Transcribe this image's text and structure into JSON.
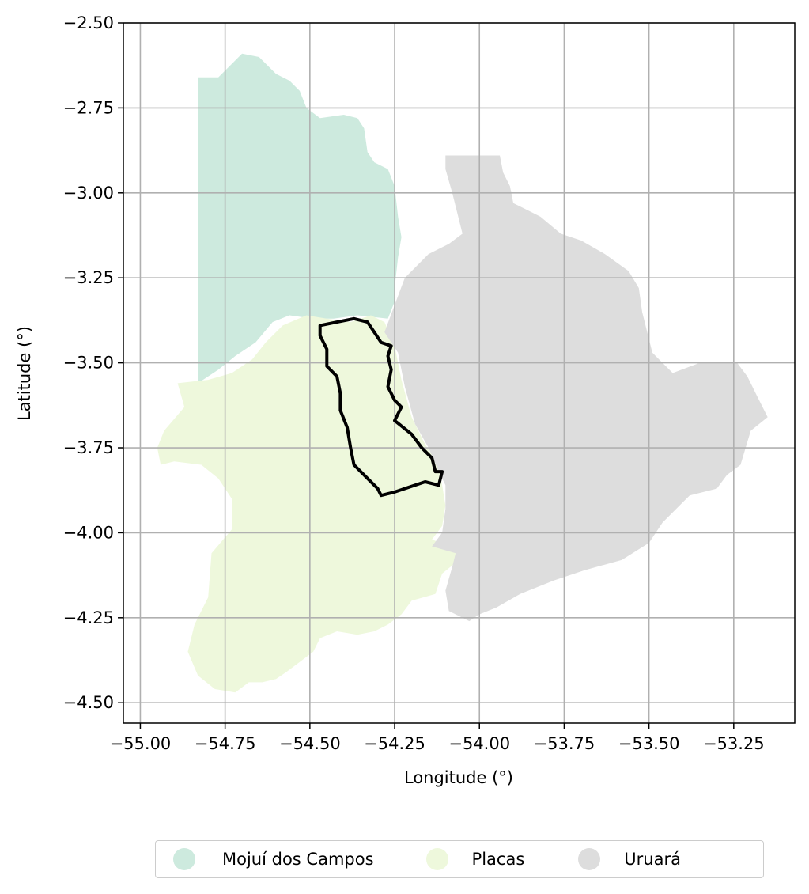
{
  "chart_data": {
    "type": "map",
    "xlabel": "Longitude (°)",
    "ylabel": "Latitude (°)",
    "xlim": [
      -55.05,
      -53.07
    ],
    "ylim": [
      -4.56,
      -2.5
    ],
    "xticks": [
      -55.0,
      -54.75,
      -54.5,
      -54.25,
      -54.0,
      -53.75,
      -53.5,
      -53.25
    ],
    "yticks": [
      -2.5,
      -2.75,
      -3.0,
      -3.25,
      -3.5,
      -3.75,
      -4.0,
      -4.25,
      -4.5
    ],
    "xtick_labels": [
      "−55.00",
      "−54.75",
      "−54.50",
      "−54.25",
      "−54.00",
      "−53.75",
      "−53.50",
      "−53.25"
    ],
    "ytick_labels": [
      "−2.50",
      "−2.75",
      "−3.00",
      "−3.25",
      "−3.50",
      "−3.75",
      "−4.00",
      "−4.25",
      "−4.50"
    ],
    "grid": true,
    "legend_position": "bottom-center",
    "regions": [
      {
        "name": "Mojuí dos Campos",
        "color": "#cdeade",
        "polygon": [
          [
            -54.83,
            -2.66
          ],
          [
            -54.77,
            -2.66
          ],
          [
            -54.7,
            -2.59
          ],
          [
            -54.65,
            -2.6
          ],
          [
            -54.6,
            -2.65
          ],
          [
            -54.56,
            -2.67
          ],
          [
            -54.53,
            -2.7
          ],
          [
            -54.51,
            -2.75
          ],
          [
            -54.47,
            -2.78
          ],
          [
            -54.4,
            -2.77
          ],
          [
            -54.36,
            -2.78
          ],
          [
            -54.34,
            -2.81
          ],
          [
            -54.33,
            -2.88
          ],
          [
            -54.31,
            -2.91
          ],
          [
            -54.27,
            -2.93
          ],
          [
            -54.25,
            -2.98
          ],
          [
            -54.24,
            -3.07
          ],
          [
            -54.23,
            -3.13
          ],
          [
            -54.24,
            -3.19
          ],
          [
            -54.25,
            -3.28
          ],
          [
            -54.25,
            -3.32
          ],
          [
            -54.27,
            -3.37
          ],
          [
            -54.36,
            -3.36
          ],
          [
            -54.43,
            -3.37
          ],
          [
            -54.49,
            -3.37
          ],
          [
            -54.56,
            -3.36
          ],
          [
            -54.61,
            -3.38
          ],
          [
            -54.66,
            -3.44
          ],
          [
            -54.72,
            -3.48
          ],
          [
            -54.77,
            -3.52
          ],
          [
            -54.83,
            -3.56
          ]
        ]
      },
      {
        "name": "Placas",
        "color": "#eef8dc",
        "polygon": [
          [
            -54.51,
            -3.36
          ],
          [
            -54.45,
            -3.37
          ],
          [
            -54.38,
            -3.38
          ],
          [
            -54.32,
            -3.36
          ],
          [
            -54.28,
            -3.38
          ],
          [
            -54.25,
            -3.45
          ],
          [
            -54.23,
            -3.55
          ],
          [
            -54.2,
            -3.66
          ],
          [
            -54.16,
            -3.74
          ],
          [
            -54.12,
            -3.8
          ],
          [
            -54.11,
            -3.86
          ],
          [
            -54.1,
            -3.92
          ],
          [
            -54.11,
            -3.98
          ],
          [
            -54.14,
            -4.02
          ],
          [
            -54.06,
            -4.05
          ],
          [
            -54.06,
            -4.08
          ],
          [
            -54.11,
            -4.12
          ],
          [
            -54.13,
            -4.18
          ],
          [
            -54.2,
            -4.2
          ],
          [
            -54.23,
            -4.24
          ],
          [
            -54.27,
            -4.27
          ],
          [
            -54.31,
            -4.29
          ],
          [
            -54.36,
            -4.3
          ],
          [
            -54.42,
            -4.29
          ],
          [
            -54.47,
            -4.31
          ],
          [
            -54.49,
            -4.35
          ],
          [
            -54.53,
            -4.38
          ],
          [
            -54.57,
            -4.41
          ],
          [
            -54.6,
            -4.43
          ],
          [
            -54.64,
            -4.44
          ],
          [
            -54.68,
            -4.44
          ],
          [
            -54.72,
            -4.47
          ],
          [
            -54.78,
            -4.46
          ],
          [
            -54.83,
            -4.42
          ],
          [
            -54.86,
            -4.35
          ],
          [
            -54.84,
            -4.27
          ],
          [
            -54.8,
            -4.19
          ],
          [
            -54.79,
            -4.06
          ],
          [
            -54.73,
            -3.99
          ],
          [
            -54.73,
            -3.9
          ],
          [
            -54.77,
            -3.84
          ],
          [
            -54.82,
            -3.8
          ],
          [
            -54.9,
            -3.79
          ],
          [
            -54.94,
            -3.8
          ],
          [
            -54.95,
            -3.75
          ],
          [
            -54.93,
            -3.7
          ],
          [
            -54.87,
            -3.63
          ],
          [
            -54.89,
            -3.56
          ],
          [
            -54.8,
            -3.55
          ],
          [
            -54.73,
            -3.53
          ],
          [
            -54.67,
            -3.49
          ],
          [
            -54.63,
            -3.44
          ],
          [
            -54.58,
            -3.39
          ]
        ]
      },
      {
        "name": "Uruará",
        "color": "#dddddd",
        "polygon": [
          [
            -54.1,
            -2.89
          ],
          [
            -53.94,
            -2.89
          ],
          [
            -53.93,
            -2.94
          ],
          [
            -53.91,
            -2.98
          ],
          [
            -53.9,
            -3.03
          ],
          [
            -53.86,
            -3.05
          ],
          [
            -53.82,
            -3.07
          ],
          [
            -53.76,
            -3.12
          ],
          [
            -53.7,
            -3.14
          ],
          [
            -53.63,
            -3.18
          ],
          [
            -53.56,
            -3.23
          ],
          [
            -53.53,
            -3.28
          ],
          [
            -53.52,
            -3.35
          ],
          [
            -53.49,
            -3.47
          ],
          [
            -53.43,
            -3.53
          ],
          [
            -53.35,
            -3.5
          ],
          [
            -53.3,
            -3.5
          ],
          [
            -53.24,
            -3.5
          ],
          [
            -53.21,
            -3.54
          ],
          [
            -53.18,
            -3.6
          ],
          [
            -53.15,
            -3.66
          ],
          [
            -53.2,
            -3.7
          ],
          [
            -53.23,
            -3.8
          ],
          [
            -53.27,
            -3.83
          ],
          [
            -53.3,
            -3.87
          ],
          [
            -53.38,
            -3.89
          ],
          [
            -53.46,
            -3.97
          ],
          [
            -53.5,
            -4.03
          ],
          [
            -53.58,
            -4.08
          ],
          [
            -53.69,
            -4.11
          ],
          [
            -53.78,
            -4.14
          ],
          [
            -53.88,
            -4.18
          ],
          [
            -53.95,
            -4.22
          ],
          [
            -54.0,
            -4.24
          ],
          [
            -54.03,
            -4.26
          ],
          [
            -54.09,
            -4.23
          ],
          [
            -54.1,
            -4.17
          ],
          [
            -54.08,
            -4.1
          ],
          [
            -54.07,
            -4.06
          ],
          [
            -54.14,
            -4.04
          ],
          [
            -54.11,
            -4.0
          ],
          [
            -54.1,
            -3.93
          ],
          [
            -54.1,
            -3.86
          ],
          [
            -54.12,
            -3.82
          ],
          [
            -54.15,
            -3.75
          ],
          [
            -54.19,
            -3.68
          ],
          [
            -54.22,
            -3.57
          ],
          [
            -54.24,
            -3.47
          ],
          [
            -54.28,
            -3.41
          ],
          [
            -54.25,
            -3.33
          ],
          [
            -54.22,
            -3.25
          ],
          [
            -54.15,
            -3.18
          ],
          [
            -54.09,
            -3.15
          ],
          [
            -54.05,
            -3.12
          ],
          [
            -54.08,
            -3.0
          ],
          [
            -54.1,
            -2.93
          ]
        ]
      }
    ],
    "outline": [
      [
        -54.47,
        -3.39
      ],
      [
        -54.42,
        -3.38
      ],
      [
        -54.37,
        -3.37
      ],
      [
        -54.33,
        -3.38
      ],
      [
        -54.31,
        -3.41
      ],
      [
        -54.29,
        -3.44
      ],
      [
        -54.26,
        -3.45
      ],
      [
        -54.27,
        -3.48
      ],
      [
        -54.26,
        -3.52
      ],
      [
        -54.27,
        -3.57
      ],
      [
        -54.25,
        -3.61
      ],
      [
        -54.23,
        -3.63
      ],
      [
        -54.25,
        -3.67
      ],
      [
        -54.2,
        -3.71
      ],
      [
        -54.17,
        -3.75
      ],
      [
        -54.14,
        -3.78
      ],
      [
        -54.13,
        -3.82
      ],
      [
        -54.11,
        -3.82
      ],
      [
        -54.12,
        -3.86
      ],
      [
        -54.16,
        -3.85
      ],
      [
        -54.25,
        -3.88
      ],
      [
        -54.29,
        -3.89
      ],
      [
        -54.3,
        -3.87
      ],
      [
        -54.33,
        -3.84
      ],
      [
        -54.37,
        -3.8
      ],
      [
        -54.38,
        -3.75
      ],
      [
        -54.39,
        -3.69
      ],
      [
        -54.41,
        -3.64
      ],
      [
        -54.41,
        -3.59
      ],
      [
        -54.42,
        -3.54
      ],
      [
        -54.45,
        -3.51
      ],
      [
        -54.45,
        -3.46
      ],
      [
        -54.47,
        -3.42
      ]
    ],
    "legend": [
      "Mojuí dos Campos",
      "Placas",
      "Uruará"
    ]
  }
}
